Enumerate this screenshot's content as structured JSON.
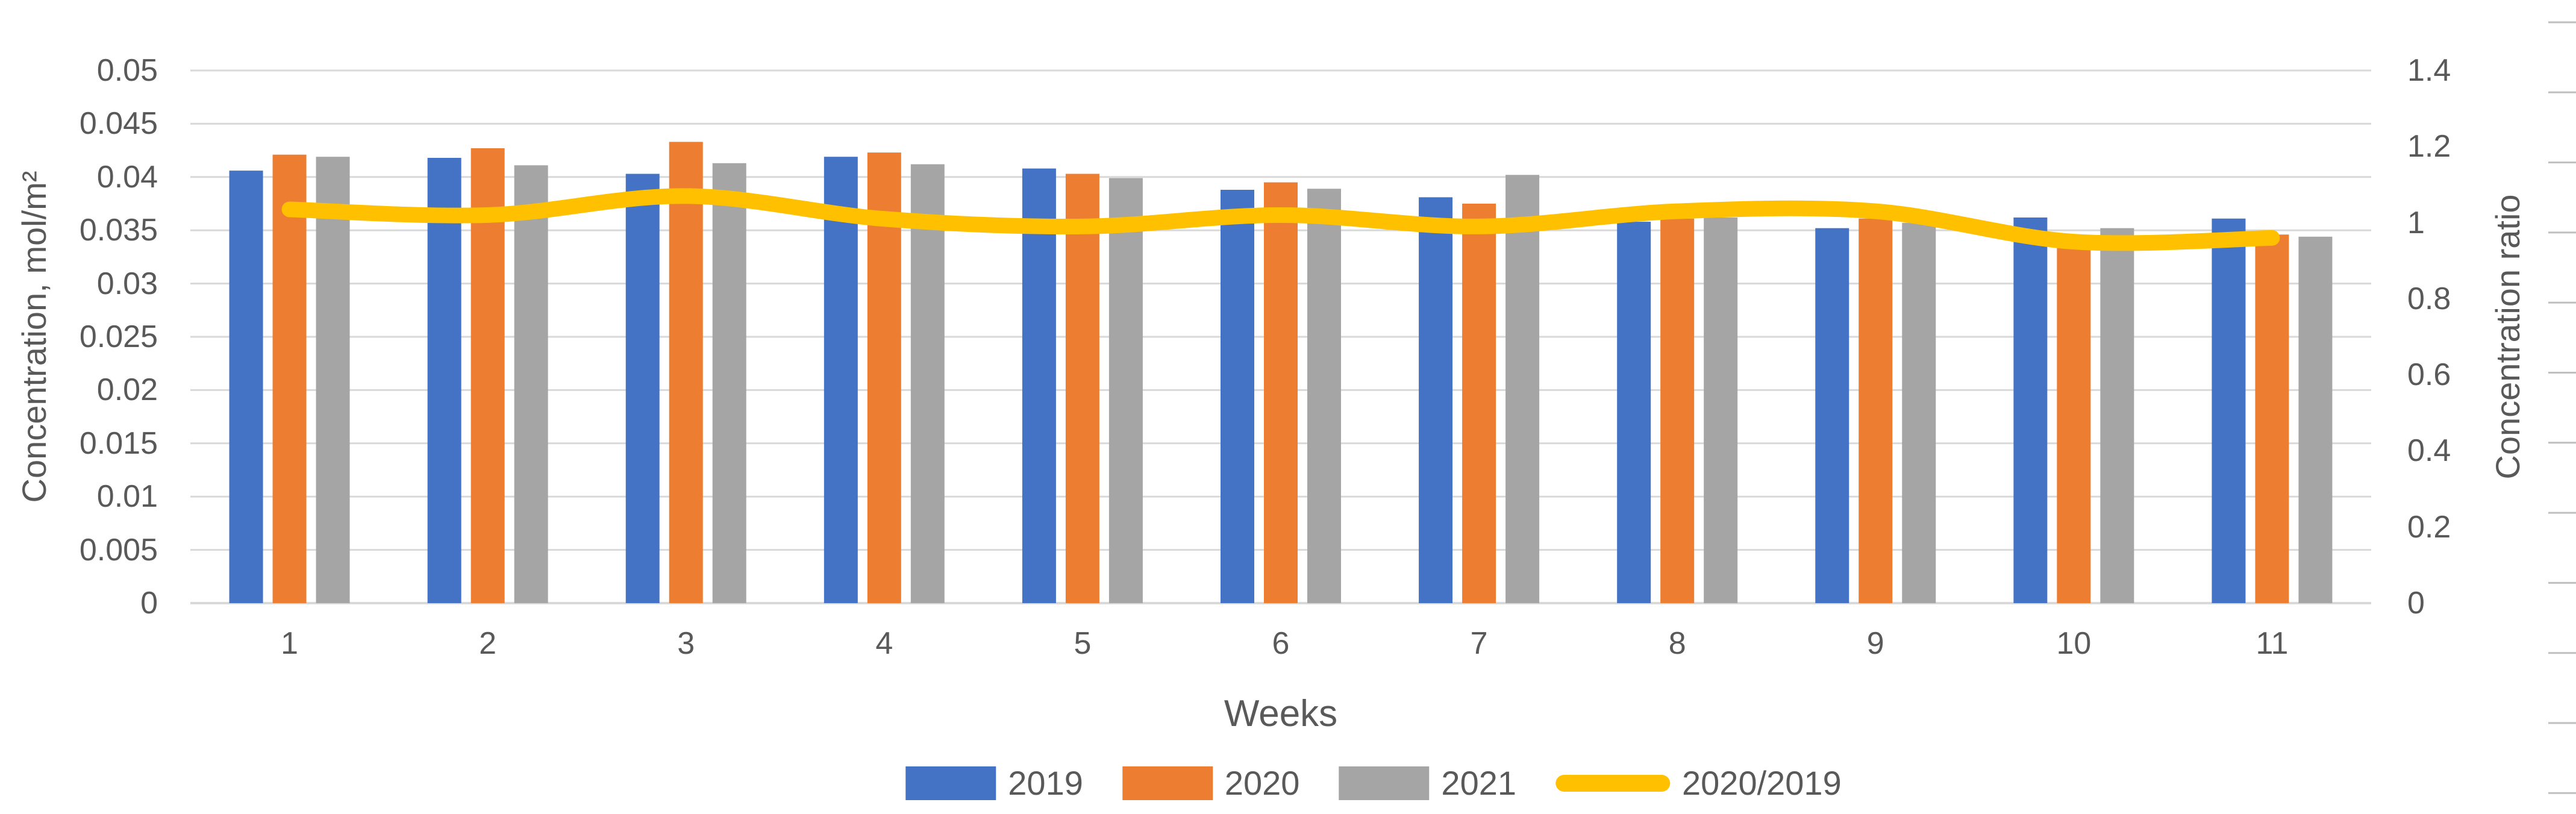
{
  "chart_data": {
    "type": "combo-bar-line",
    "title": "",
    "x": {
      "title": "Weeks",
      "categories": [
        "1",
        "2",
        "3",
        "4",
        "5",
        "6",
        "7",
        "8",
        "9",
        "10",
        "11"
      ]
    },
    "y_left": {
      "title": "Concentration, mol/m²",
      "min": 0,
      "max": 0.05,
      "step": 0.005,
      "tick_labels": [
        "0",
        "0.005",
        "0.01",
        "0.015",
        "0.02",
        "0.025",
        "0.03",
        "0.035",
        "0.04",
        "0.045",
        "0.05"
      ]
    },
    "y_right": {
      "title": "Concentration ratio",
      "min": 0,
      "max": 1.4,
      "step": 0.2,
      "tick_labels": [
        "0",
        "0.2",
        "0.4",
        "0.6",
        "0.8",
        "1",
        "1.2",
        "1.4"
      ]
    },
    "series": [
      {
        "name": "2019",
        "type": "bar",
        "axis": "left",
        "color": "#4472C4",
        "values": [
          0.0406,
          0.0418,
          0.0403,
          0.0419,
          0.0408,
          0.0388,
          0.0381,
          0.0358,
          0.0352,
          0.0362,
          0.0361
        ]
      },
      {
        "name": "2020",
        "type": "bar",
        "axis": "left",
        "color": "#ED7D31",
        "values": [
          0.0421,
          0.0427,
          0.0433,
          0.0423,
          0.0403,
          0.0395,
          0.0375,
          0.0361,
          0.0361,
          0.0335,
          0.0346
        ]
      },
      {
        "name": "2021",
        "type": "bar",
        "axis": "left",
        "color": "#A5A5A5",
        "values": [
          0.0419,
          0.0411,
          0.0413,
          0.0412,
          0.0399,
          0.0389,
          0.0402,
          0.0362,
          0.0357,
          0.0352,
          0.0344
        ]
      },
      {
        "name": "2020/2019",
        "type": "line",
        "axis": "right",
        "color": "#FFC000",
        "values": [
          1.035,
          1.02,
          1.07,
          1.01,
          0.99,
          1.02,
          0.99,
          1.03,
          1.03,
          0.95,
          0.96
        ]
      }
    ],
    "grid": true,
    "legend_position": "bottom",
    "colors": {
      "grid": "#D9D9D9",
      "text": "#595959",
      "edge_ticks": "#BFBFBF",
      "background": "#FFFFFF"
    }
  }
}
